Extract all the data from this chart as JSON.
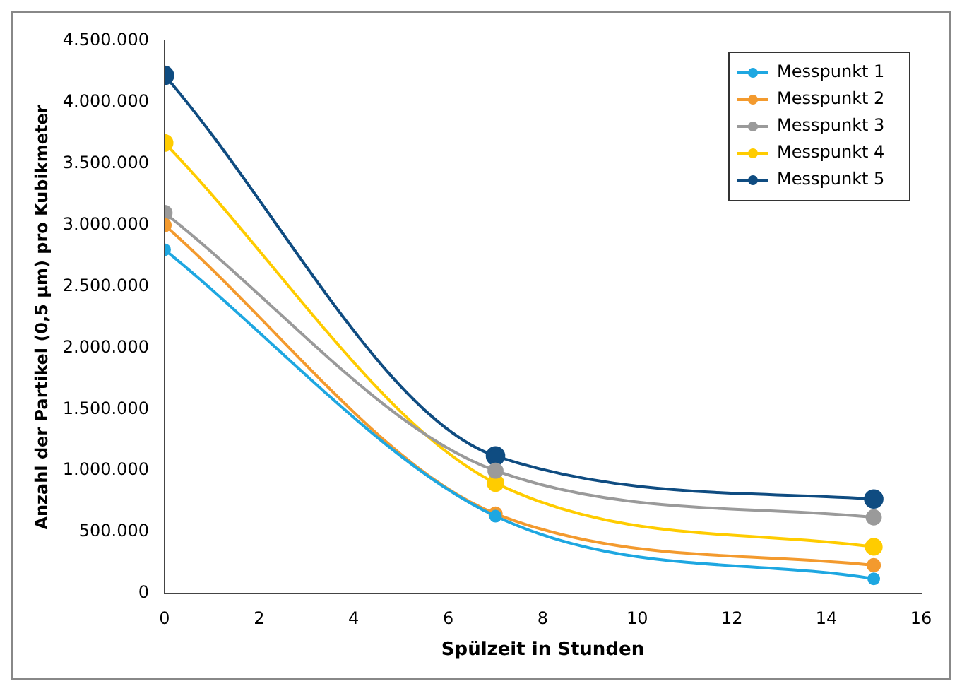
{
  "chart_data": {
    "type": "line",
    "xlabel": "Spülzeit in Stunden",
    "ylabel": "Anzahl der Partikel (0,5 µm) pro Kubikmeter",
    "x": [
      0,
      7,
      15
    ],
    "series": [
      {
        "name": "Messpunkt 1",
        "color": "#1ea7e1",
        "values": [
          2800000,
          630000,
          120000
        ]
      },
      {
        "name": "Messpunkt 2",
        "color": "#f39a2e",
        "values": [
          3000000,
          650000,
          230000
        ]
      },
      {
        "name": "Messpunkt 3",
        "color": "#9a9a9a",
        "values": [
          3100000,
          1000000,
          620000
        ]
      },
      {
        "name": "Messpunkt 4",
        "color": "#ffcc00",
        "values": [
          3670000,
          900000,
          380000
        ]
      },
      {
        "name": "Messpunkt 5",
        "color": "#0f4c81",
        "values": [
          4220000,
          1120000,
          770000
        ]
      }
    ],
    "xlim": [
      0,
      16
    ],
    "xticks": [
      0,
      2,
      4,
      6,
      8,
      10,
      12,
      14,
      16
    ],
    "ylim": [
      0,
      4500000
    ],
    "yticks": [
      0,
      {
        "value": 500000,
        "label": "500.000"
      },
      {
        "value": 1000000,
        "label": "1.000.000"
      },
      {
        "value": 1500000,
        "label": "1.500.000"
      },
      {
        "value": 2000000,
        "label": "2.000.000"
      },
      {
        "value": 2500000,
        "label": "2.500.000"
      },
      {
        "value": 3000000,
        "label": "3.000.000"
      },
      {
        "value": 3500000,
        "label": "3.500.000"
      },
      {
        "value": 4000000,
        "label": "4.000.000"
      },
      {
        "value": 4500000,
        "label": "4.500.000"
      }
    ],
    "grid": false,
    "legend": "top right",
    "marker": "circle",
    "line_style": "solid"
  }
}
